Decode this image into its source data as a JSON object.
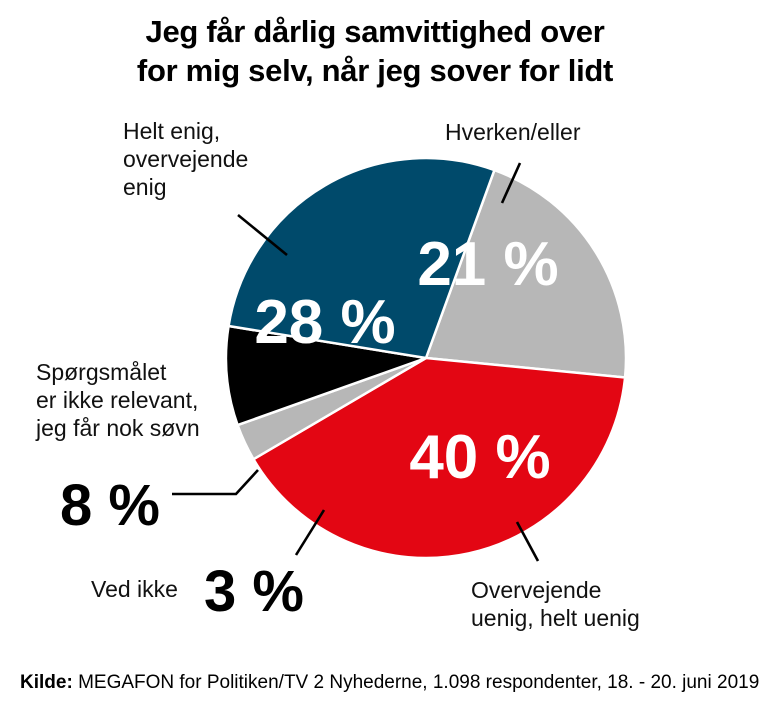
{
  "title_lines": [
    "Jeg får dårlig samvittighed over",
    "for mig selv, når jeg sover for lidt"
  ],
  "chart_data": {
    "type": "pie",
    "title": "Jeg får dårlig samvittighed over for mig selv, når jeg sover for lidt",
    "slices": [
      {
        "label": [
          "Hverken/eller"
        ],
        "value": 21,
        "value_label": "21 %",
        "color": "#b7b7b7"
      },
      {
        "label": [
          "Overvejende",
          "uenig, helt uenig"
        ],
        "value": 40,
        "value_label": "40 %",
        "color": "#e30613"
      },
      {
        "label": [
          "Ved ikke"
        ],
        "value": 3,
        "value_label": "3 %",
        "color": "#b7b7b7"
      },
      {
        "label": [
          "Spørgsmålet",
          "er ikke relevant,",
          "jeg får nok søvn"
        ],
        "value": 8,
        "value_label": "8 %",
        "color": "#000000"
      },
      {
        "label": [
          "Helt enig,",
          "overvejende",
          "enig"
        ],
        "value": 28,
        "value_label": "28 %",
        "color": "#004a6b"
      }
    ]
  },
  "source": {
    "prefix": "Kilde:",
    "text": "MEGAFON for Politiken/TV 2 Nyhederne, 1.098 respondenter, 18. - 20. juni 2019"
  }
}
